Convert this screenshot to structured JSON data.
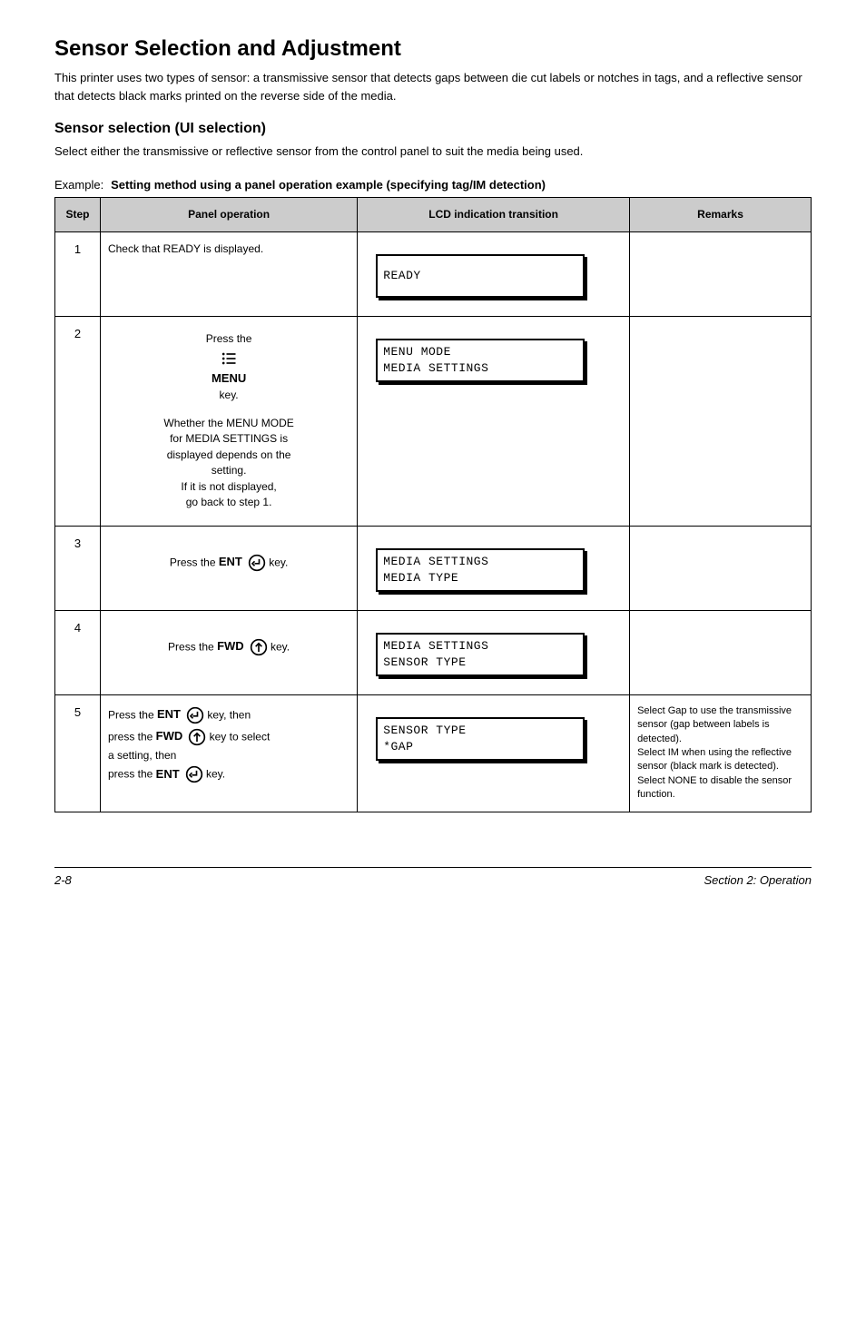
{
  "header": {
    "title": "Sensor Selection and Adjustment",
    "intro": "This printer uses two types of sensor: a transmissive sensor that detects gaps between die cut labels or notches in tags, and a reflective sensor that detects black marks printed on the reverse side of the media.",
    "sensor_ui_title": "Sensor selection (UI selection)",
    "sensor_ui_body": "Select either the transmissive or reflective sensor from the control panel to suit the media being used.",
    "example_label": "Example:",
    "example_bold": "Setting method using a panel operation example (specifying tag/IM detection)"
  },
  "colors": {
    "header_bg": "#cccccc",
    "border": "#000000"
  },
  "table": {
    "headers": {
      "step": "Step",
      "op": "Panel operation",
      "disp": "LCD indication transition",
      "rem": "Remarks"
    },
    "rows": [
      {
        "step": "1",
        "op_html": "<div class=\"op-text\">Check that READY is displayed.</div>",
        "lcd": {
          "line1": "READY",
          "line2": ""
        },
        "rem_html": ""
      },
      {
        "step": "2",
        "op_html": "<div class=\"op-block centered tall\"><span class=\"op-text\">Press the </span><span class=\"btn-wrap\" data-name=\"menu-button\" data-interactable=\"true\"><span class=\"btn-line\"><svg class=\"icon-svg\" viewBox=\"0 0 24 24\" data-name=\"menu-icon\" data-interactable=\"false\"><circle cx=\"5\" cy=\"6\" r=\"1.6\" fill=\"#000\"/><rect x=\"9\" y=\"5\" width=\"12\" height=\"2\" fill=\"#000\"/><circle cx=\"5\" cy=\"12\" r=\"1.6\" fill=\"#000\"/><rect x=\"9\" y=\"11\" width=\"12\" height=\"2\" fill=\"#000\"/><circle cx=\"5\" cy=\"18\" r=\"1.6\" fill=\"#000\"/><rect x=\"9\" y=\"17\" width=\"12\" height=\"2\" fill=\"#000\"/></svg></span><span class=\"btn-sublabel\">MENU</span></span><span class=\"op-text\"> key.</span><div class=\"op-text\" style=\"margin-top:14px;text-align:center\">Whether the MENU MODE<br>for MEDIA SETTINGS is<br>displayed depends on the<br>setting.<br>If it is not displayed,<br>go back to step 1.</div></div>",
        "lcd": {
          "line1": "MENU MODE",
          "line2": "MEDIA SETTINGS"
        },
        "rem_html": ""
      },
      {
        "step": "3",
        "op_html": "<div class=\"op-block centered\"><span class=\"op-text\">Press the <span class=\"btn-wrap\" data-name=\"ent-button\" data-interactable=\"true\"><span class=\"btn-line\"><span class=\"btn-key-label\">ENT</span><svg class=\"icon-svg\" viewBox=\"0 0 24 24\" data-name=\"enter-icon\" data-interactable=\"false\"><circle cx=\"12\" cy=\"12\" r=\"10\" fill=\"none\" stroke=\"#000\" stroke-width=\"2\"/><path d=\"M15 7 v6 h-6\" fill=\"none\" stroke=\"#000\" stroke-width=\"2\"/><path d=\"M9 10 l-3 3 l3 3\" fill=\"none\" stroke=\"#000\" stroke-width=\"2\"/></svg></span></span> key.</span></div>",
        "lcd": {
          "line1": "MEDIA SETTINGS",
          "line2": "MEDIA TYPE"
        },
        "rem_html": ""
      },
      {
        "step": "4",
        "op_html": "<div class=\"op-block centered\"><span class=\"op-text\">Press the <span class=\"btn-wrap\" data-name=\"fwd-button\" data-interactable=\"true\"><span class=\"btn-line\"><span class=\"btn-key-label\">FWD</span><svg class=\"icon-svg\" viewBox=\"0 0 24 24\" data-name=\"fwd-icon\" data-interactable=\"false\"><circle cx=\"12\" cy=\"12\" r=\"10\" fill=\"none\" stroke=\"#000\" stroke-width=\"2\"/><path d=\"M12 18 v-10\" fill=\"none\" stroke=\"#000\" stroke-width=\"2\"/><path d=\"M8 11 l4 -4 l4 4\" fill=\"none\" stroke=\"#000\" stroke-width=\"2\"/></svg></span></span> key.</span></div>",
        "lcd": {
          "line1": "MEDIA SETTINGS",
          "line2": "SENSOR TYPE"
        },
        "rem_html": ""
      },
      {
        "step": "5",
        "op_html": "<div class=\"op-block\" style=\"text-align:center\"><div class=\"op-text\">Press the <span class=\"btn-wrap\" data-name=\"ent-button\" data-interactable=\"true\"><span class=\"btn-line\"><span class=\"btn-key-label\">ENT</span><svg class=\"icon-svg\" viewBox=\"0 0 24 24\" data-name=\"enter-icon\" data-interactable=\"false\"><circle cx=\"12\" cy=\"12\" r=\"10\" fill=\"none\" stroke=\"#000\" stroke-width=\"2\"/><path d=\"M15 7 v6 h-6\" fill=\"none\" stroke=\"#000\" stroke-width=\"2\"/><path d=\"M9 10 l-3 3 l3 3\" fill=\"none\" stroke=\"#000\" stroke-width=\"2\"/></svg></span></span> key, then<br>press the <span class=\"btn-wrap\" data-name=\"fwd-button\" data-interactable=\"true\"><span class=\"btn-line\"><span class=\"btn-key-label\">FWD</span><svg class=\"icon-svg\" viewBox=\"0 0 24 24\" data-name=\"fwd-icon\" data-interactable=\"false\"><circle cx=\"12\" cy=\"12\" r=\"10\" fill=\"none\" stroke=\"#000\" stroke-width=\"2\"/><path d=\"M12 18 v-10\" fill=\"none\" stroke=\"#000\" stroke-width=\"2\"/><path d=\"M8 11 l4 -4 l4 4\" fill=\"none\" stroke=\"#000\" stroke-width=\"2\"/></svg></span></span> key to select<br>a setting, then<br>press the <span class=\"btn-wrap\" data-name=\"ent-button\" data-interactable=\"true\"><span class=\"btn-line\"><span class=\"btn-key-label\">ENT</span><svg class=\"icon-svg\" viewBox=\"0 0 24 24\" data-name=\"enter-icon\" data-interactable=\"false\"><circle cx=\"12\" cy=\"12\" r=\"10\" fill=\"none\" stroke=\"#000\" stroke-width=\"2\"/><path d=\"M15 7 v6 h-6\" fill=\"none\" stroke=\"#000\" stroke-width=\"2\"/><path d=\"M9 10 l-3 3 l3 3\" fill=\"none\" stroke=\"#000\" stroke-width=\"2\"/></svg></span></span> key.</div></div>",
        "lcd": {
          "line1": "SENSOR TYPE",
          "line2": "*GAP"
        },
        "rem_html": "<div class=\"remarks-text\">Select Gap to use the transmissive sensor (gap between labels is detected).<br>Select IM when using the reflective sensor (black mark is detected).<br>Select NONE to disable the sensor function.</div>"
      }
    ]
  },
  "footer": {
    "left": "2-8",
    "right": "Section 2: Operation"
  }
}
